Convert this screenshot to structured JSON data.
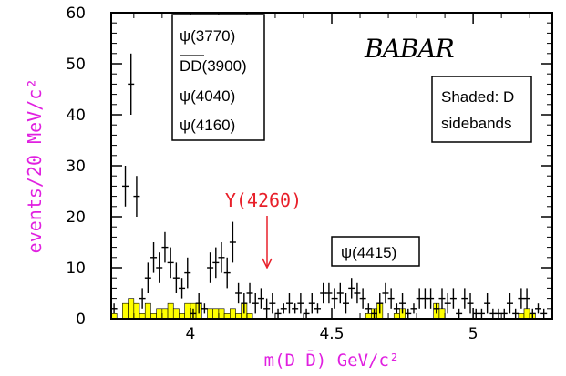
{
  "chart_data": {
    "type": "scatter",
    "title": "",
    "xlabel": "m(D D̄) GeV/c²",
    "ylabel": "events/20 MeV/c²",
    "xlim": [
      3.72,
      5.28
    ],
    "ylim": [
      0,
      60
    ],
    "x_ticks": [
      {
        "value": 4.0,
        "label": "4"
      },
      {
        "value": 4.5,
        "label": "4.5"
      },
      {
        "value": 5.0,
        "label": "5"
      }
    ],
    "y_ticks": [
      {
        "value": 0,
        "label": "0"
      },
      {
        "value": 10,
        "label": "10"
      },
      {
        "value": 20,
        "label": "20"
      },
      {
        "value": 30,
        "label": "30"
      },
      {
        "value": 40,
        "label": "40"
      },
      {
        "value": 50,
        "label": "50"
      },
      {
        "value": 60,
        "label": "60"
      }
    ],
    "series": [
      {
        "type": "points_with_errors",
        "x": [
          3.73,
          3.77,
          3.79,
          3.81,
          3.83,
          3.85,
          3.87,
          3.89,
          3.91,
          3.93,
          3.95,
          3.97,
          3.99,
          4.01,
          4.03,
          4.05,
          4.07,
          4.09,
          4.11,
          4.13,
          4.15,
          4.17,
          4.19,
          4.21,
          4.23,
          4.25,
          4.27,
          4.29,
          4.31,
          4.33,
          4.35,
          4.37,
          4.39,
          4.41,
          4.43,
          4.45,
          4.47,
          4.49,
          4.51,
          4.53,
          4.55,
          4.57,
          4.59,
          4.61,
          4.63,
          4.65,
          4.67,
          4.69,
          4.71,
          4.73,
          4.75,
          4.77,
          4.79,
          4.81,
          4.83,
          4.85,
          4.87,
          4.89,
          4.91,
          4.93,
          4.95,
          4.97,
          4.99,
          5.01,
          5.03,
          5.05,
          5.07,
          5.09,
          5.11,
          5.13,
          5.15,
          5.17,
          5.19,
          5.21,
          5.23,
          5.25
        ],
        "y": [
          2,
          26,
          46,
          24,
          4,
          8,
          12,
          10,
          14,
          11,
          8,
          6,
          9,
          1,
          3,
          2,
          10,
          11,
          12,
          9,
          15,
          5,
          3,
          5,
          3,
          4,
          2,
          3,
          1,
          2,
          3,
          2,
          3,
          1,
          3,
          2,
          5,
          5,
          4,
          5,
          3,
          6,
          5,
          4,
          2,
          1,
          3,
          5,
          4,
          2,
          3,
          1,
          2,
          4,
          4,
          4,
          2,
          4,
          3,
          4,
          1,
          4,
          3,
          1,
          1,
          3,
          1,
          1,
          1,
          3,
          1,
          4,
          4,
          1,
          2,
          1
        ],
        "errors": [
          1,
          4,
          6,
          4,
          2,
          3,
          3,
          3,
          3,
          3,
          3,
          2,
          3,
          1,
          2,
          1,
          3,
          3,
          3,
          3,
          4,
          2,
          2,
          2,
          2,
          2,
          2,
          2,
          1,
          1,
          2,
          1,
          2,
          1,
          2,
          1,
          2,
          2,
          2,
          2,
          2,
          2,
          2,
          2,
          1,
          1,
          2,
          2,
          2,
          1,
          2,
          1,
          1,
          2,
          2,
          2,
          1,
          2,
          2,
          2,
          1,
          2,
          2,
          1,
          1,
          2,
          1,
          1,
          1,
          2,
          1,
          2,
          2,
          1,
          1,
          1
        ]
      },
      {
        "type": "area",
        "x": [
          3.73,
          3.77,
          3.79,
          3.81,
          3.83,
          3.85,
          3.87,
          3.89,
          3.91,
          3.93,
          3.95,
          3.97,
          3.99,
          4.01,
          4.03,
          4.05,
          4.07,
          4.09,
          4.11,
          4.13,
          4.15,
          4.17,
          4.19,
          4.21,
          4.23,
          4.25,
          4.27,
          4.29,
          4.31,
          4.33,
          4.35,
          4.37,
          4.39,
          4.41,
          4.43,
          4.45,
          4.47,
          4.49,
          4.51,
          4.53,
          4.55,
          4.57,
          4.59,
          4.61,
          4.63,
          4.65,
          4.67,
          4.69,
          4.71,
          4.73,
          4.75,
          4.77,
          4.79,
          4.81,
          4.83,
          4.85,
          4.87,
          4.89,
          4.91,
          4.93,
          4.95,
          4.97,
          4.99,
          5.01,
          5.03,
          5.05,
          5.07,
          5.09,
          5.11,
          5.13,
          5.15,
          5.17,
          5.19,
          5.21,
          5.23,
          5.25
        ],
        "y": [
          1,
          3,
          4,
          3,
          1,
          3,
          1,
          2,
          2,
          3,
          2,
          1,
          3,
          3,
          3,
          0,
          2,
          2,
          2,
          1,
          2,
          1,
          3,
          1,
          0,
          0,
          0,
          0,
          0,
          0,
          0,
          0,
          0,
          0,
          0,
          0,
          0,
          0,
          0,
          0,
          0,
          0,
          0,
          0,
          1,
          2,
          3,
          0,
          0,
          1,
          2,
          0,
          0,
          0,
          0,
          0,
          3,
          2,
          0,
          0,
          0,
          0,
          0,
          0,
          0,
          0,
          0,
          0,
          0,
          0,
          0,
          1,
          2,
          1,
          0,
          0
        ],
        "color": "#ffff00"
      }
    ],
    "annotations": {
      "states_box": [
        "ψ(3770)",
        "DD(3900)",
        "ψ(4040)",
        "ψ(4160)"
      ],
      "logo": "BABAR",
      "sideband_box": [
        "Shaded: D",
        "sidebands"
      ],
      "y4260_label": "Y(4260)",
      "y4260_color": "#e8202a",
      "y4260_x": 4.26,
      "psi4415_label": "ψ(4415)"
    },
    "ylabel_color": "#e020e0",
    "xlabel_color": "#e020e0",
    "grid": false,
    "legend": "none"
  }
}
